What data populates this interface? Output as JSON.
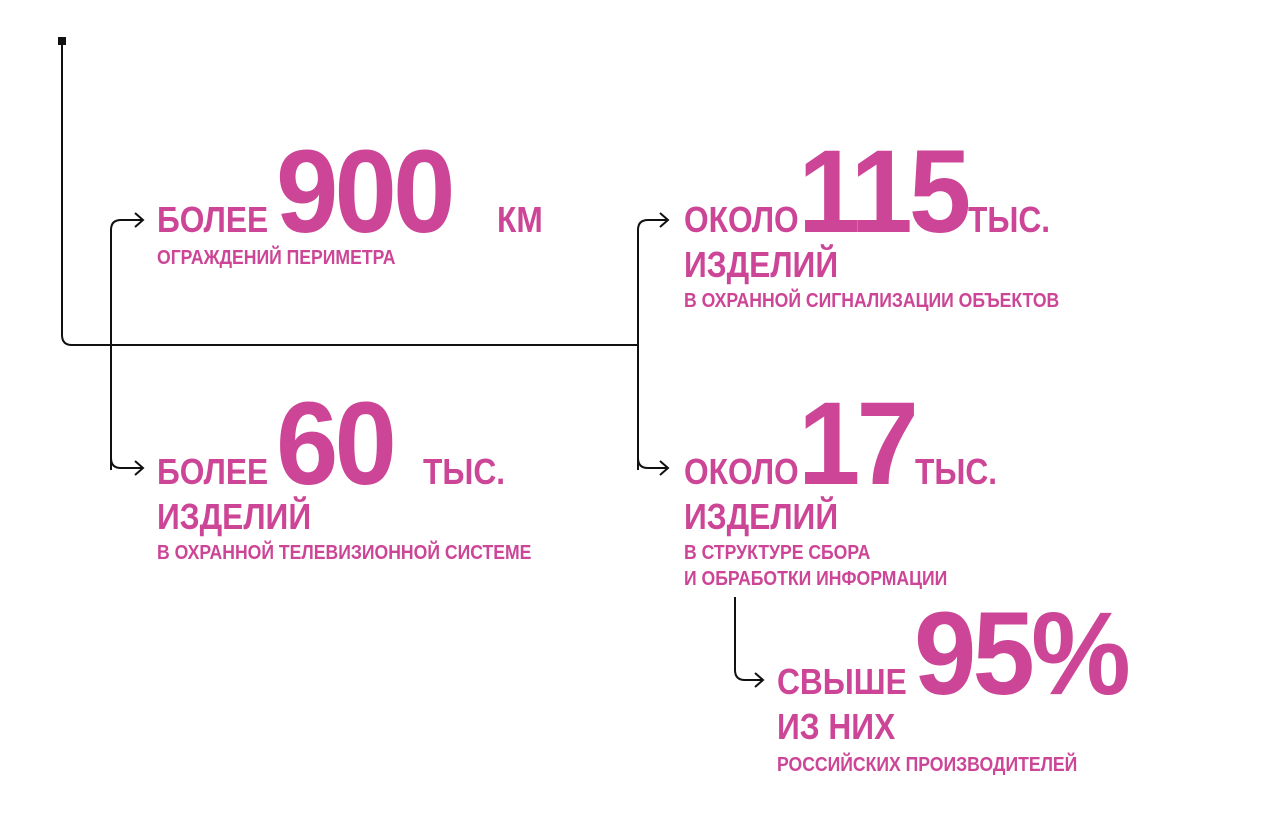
{
  "accent_color": "#cc4596",
  "line_color": "#111111",
  "stats": [
    {
      "prefix": "БОЛЕЕ",
      "value": "900",
      "unit": "КМ",
      "lines": [
        "ОГРАЖДЕНИЙ ПЕРИМЕТРА"
      ]
    },
    {
      "prefix": "ОКОЛО",
      "value": "115",
      "unit": "ТЫС.",
      "second": "ИЗДЕЛИЙ",
      "lines": [
        "В ОХРАННОЙ СИГНАЛИЗАЦИИ ОБЪЕКТОВ"
      ]
    },
    {
      "prefix": "БОЛЕЕ",
      "value": "60",
      "unit": "ТЫС.",
      "second": "ИЗДЕЛИЙ",
      "lines": [
        "В ОХРАННОЙ ТЕЛЕВИЗИОННОЙ СИСТЕМЕ"
      ]
    },
    {
      "prefix": "ОКОЛО",
      "value": "17",
      "unit": "ТЫС.",
      "second": "ИЗДЕЛИЙ",
      "lines": [
        "В СТРУКТУРЕ СБОРА",
        "И ОБРАБОТКИ ИНФОРМАЦИИ"
      ]
    },
    {
      "prefix": "СВЫШЕ",
      "value": "95%",
      "second": "ИЗ НИХ",
      "lines": [
        "РОССИЙСКИХ ПРОИЗВОДИТЕЛЕЙ"
      ]
    }
  ]
}
